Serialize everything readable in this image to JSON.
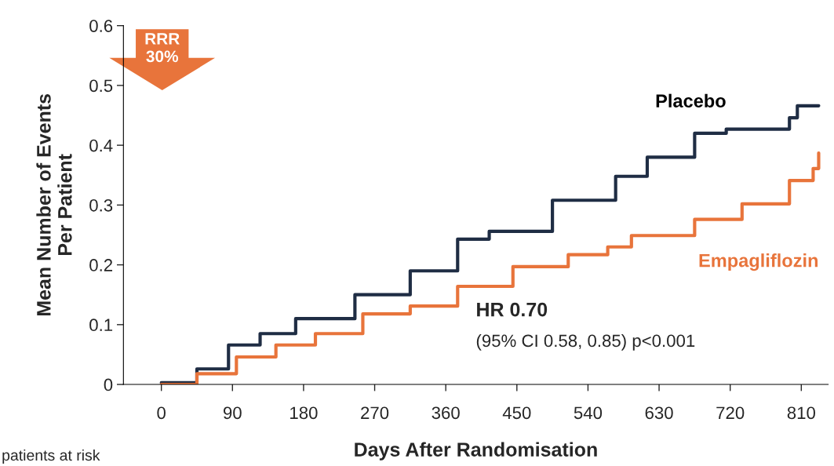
{
  "chart_data": {
    "type": "step",
    "xlabel": "Days After Randomisation",
    "ylabel": "Mean Number of Events\nPer Patient",
    "xlim": [
      -48,
      844
    ],
    "ylim": [
      0,
      0.6
    ],
    "xticks": [
      0,
      90,
      180,
      270,
      360,
      450,
      540,
      630,
      720,
      810
    ],
    "yticks": [
      0,
      0.1,
      0.2,
      0.3,
      0.4,
      0.5,
      0.6
    ],
    "grid": false,
    "legend": false,
    "series": [
      {
        "name": "Placebo",
        "color": "#1f2d44",
        "x": [
          0,
          45,
          85,
          125,
          170,
          245,
          315,
          375,
          415,
          495,
          575,
          615,
          675,
          715,
          795,
          805,
          832
        ],
        "values": [
          0.003,
          0.026,
          0.066,
          0.085,
          0.11,
          0.15,
          0.19,
          0.243,
          0.256,
          0.308,
          0.348,
          0.38,
          0.42,
          0.427,
          0.446,
          0.466,
          0.466
        ]
      },
      {
        "name": "Empagliflozin",
        "color": "#e8743b",
        "x": [
          0,
          45,
          95,
          145,
          195,
          255,
          315,
          375,
          445,
          515,
          565,
          595,
          675,
          735,
          795,
          825,
          832
        ],
        "values": [
          0,
          0.018,
          0.046,
          0.066,
          0.085,
          0.118,
          0.131,
          0.164,
          0.197,
          0.217,
          0.23,
          0.249,
          0.276,
          0.302,
          0.341,
          0.361,
          0.387
        ]
      }
    ],
    "annotations": [
      "RRR\n30%",
      "HR 0.70",
      "(95% CI 0.58, 0.85) p<0.001",
      "patients at risk"
    ]
  }
}
